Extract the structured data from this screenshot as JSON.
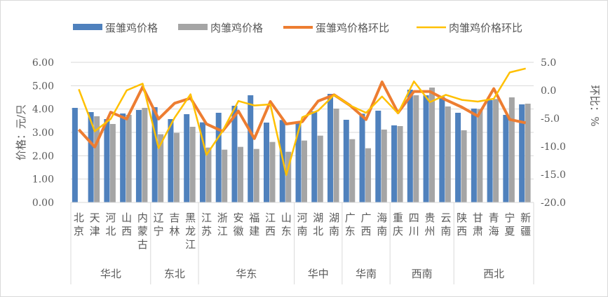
{
  "chart_data": {
    "type": "bar+line",
    "categories": [
      "北京",
      "天津",
      "河北",
      "山西",
      "内蒙古",
      "辽宁",
      "吉林",
      "黑龙江",
      "江苏",
      "浙江",
      "安徽",
      "福建",
      "江西",
      "山东",
      "河南",
      "湖北",
      "湖南",
      "广东",
      "广西",
      "海南",
      "重庆",
      "四川",
      "贵州",
      "云南",
      "陕西",
      "甘肃",
      "青海",
      "宁夏",
      "新疆"
    ],
    "groups": [
      {
        "name": "华北",
        "count": 5
      },
      {
        "name": "东北",
        "count": 3
      },
      {
        "name": "华东",
        "count": 6
      },
      {
        "name": "华中",
        "count": 3
      },
      {
        "name": "华南",
        "count": 3
      },
      {
        "name": "西南",
        "count": 4
      },
      {
        "name": "西北",
        "count": 5
      }
    ],
    "series": [
      {
        "name": "蛋雏鸡价格",
        "type": "bar",
        "axis": "left",
        "color": "#4f81bd",
        "values": [
          4.05,
          3.87,
          3.57,
          3.81,
          3.96,
          4.08,
          3.57,
          3.78,
          3.43,
          3.84,
          4.14,
          4.59,
          3.42,
          3.53,
          3.45,
          3.9,
          4.65,
          3.54,
          3.8,
          3.93,
          3.3,
          4.83,
          4.59,
          4.52,
          3.84,
          4.02,
          4.38,
          3.75,
          4.2
        ]
      },
      {
        "name": "肉雏鸡价格",
        "type": "bar",
        "axis": "left",
        "color": "#a5a5a5",
        "values": [
          null,
          3.69,
          3.36,
          3.75,
          4.05,
          2.92,
          2.98,
          3.24,
          2.35,
          2.26,
          2.38,
          2.29,
          2.59,
          2.17,
          2.65,
          2.86,
          4.02,
          2.71,
          2.32,
          3.12,
          3.27,
          4.59,
          4.92,
          4.11,
          3.09,
          4.0,
          4.43,
          4.5,
          4.23
        ]
      },
      {
        "name": "蛋雏鸡价格环比",
        "type": "line",
        "axis": "right",
        "color": "#ed7d31",
        "values": [
          -7.0,
          -10.1,
          -3.9,
          -5.1,
          0.6,
          -5.1,
          -2.3,
          -1.4,
          -6.0,
          -7.3,
          -3.7,
          -8.6,
          -2.0,
          -6.0,
          -5.6,
          -1.9,
          -0.8,
          -2.7,
          -5.2,
          1.5,
          -4.0,
          -0.2,
          -0.2,
          -1.7,
          -3.0,
          -4.6,
          0.3,
          -5.2,
          -5.8
        ]
      },
      {
        "name": "肉雏鸡价格环比",
        "type": "line",
        "axis": "right",
        "color": "#ffc000",
        "values": [
          0.2,
          -7.3,
          -5.1,
          0.0,
          1.2,
          -10.3,
          -4.9,
          -0.7,
          -11.5,
          -7.3,
          -1.9,
          -2.7,
          -2.5,
          -15.1,
          -4.8,
          -3.6,
          -0.8,
          -2.7,
          -4.0,
          -1.1,
          -4.1,
          1.6,
          -2.1,
          -0.8,
          -1.7,
          -2.0,
          -1.5,
          3.2,
          3.9
        ]
      }
    ],
    "ylabel": "价格：元/只",
    "y2label": "环比：%",
    "ylim": [
      0,
      6
    ],
    "y2lim": [
      -20,
      5
    ],
    "yticks": [
      "0.00",
      "1.00",
      "2.00",
      "3.00",
      "4.00",
      "5.00",
      "6.00"
    ],
    "y2ticks": [
      "-20.0",
      "-15.0",
      "-10.0",
      "-5.0",
      "0.0",
      "5.0"
    ],
    "grid": true,
    "legend": "top"
  }
}
